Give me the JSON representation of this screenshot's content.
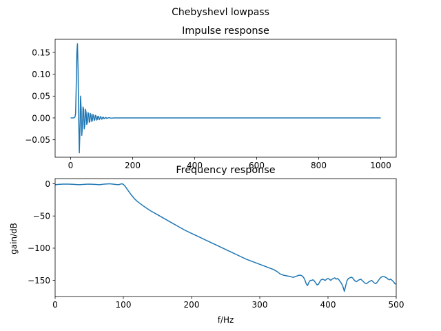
{
  "figure": {
    "suptitle": "Chebyshevl lowpass"
  },
  "chart_data": [
    {
      "type": "line",
      "title": "Impulse response",
      "xlabel": "",
      "ylabel": "",
      "xlim": [
        -50,
        1050
      ],
      "ylim": [
        -0.09,
        0.18
      ],
      "xticks": [
        0,
        200,
        400,
        600,
        800,
        1000
      ],
      "xtick_labels": [
        "0",
        "200",
        "400",
        "600",
        "800",
        "1000"
      ],
      "yticks": [
        0.15,
        0.1,
        0.05,
        0.0,
        -0.05
      ],
      "ytick_labels": [
        "0.15",
        "0.10",
        "0.05",
        "0.00",
        "−0.05"
      ],
      "grid": false,
      "color": "#1f77b4",
      "series": [
        {
          "x": [
            0,
            10,
            14,
            16,
            18,
            20,
            22,
            24,
            26,
            28,
            30,
            32,
            34,
            36,
            38,
            40,
            42,
            44,
            46,
            48,
            50,
            52,
            54,
            56,
            58,
            60,
            62,
            64,
            66,
            68,
            70,
            72,
            74,
            76,
            78,
            80,
            82,
            84,
            86,
            88,
            90,
            92,
            94,
            96,
            98,
            100,
            102,
            104,
            106,
            108,
            110,
            112,
            114,
            116,
            118,
            120,
            125,
            130,
            140,
            160,
            200,
            1000
          ],
          "y": [
            0.0,
            0.0,
            0.002,
            0.01,
            0.07,
            0.15,
            0.17,
            0.11,
            0.0,
            -0.08,
            -0.03,
            0.05,
            0.02,
            -0.04,
            -0.02,
            0.025,
            0.02,
            -0.025,
            -0.015,
            0.02,
            0.012,
            -0.015,
            -0.01,
            0.012,
            0.01,
            -0.01,
            -0.008,
            0.01,
            0.007,
            -0.008,
            -0.006,
            0.008,
            0.005,
            -0.006,
            -0.004,
            0.006,
            0.004,
            -0.005,
            -0.003,
            0.004,
            0.003,
            -0.004,
            -0.002,
            0.003,
            0.002,
            -0.003,
            -0.002,
            0.002,
            0.001,
            -0.002,
            -0.001,
            0.001,
            0.001,
            -0.001,
            -0.001,
            0.0,
            0.0005,
            -0.0005,
            0.0,
            0.0,
            0.0,
            0.0
          ]
        }
      ]
    },
    {
      "type": "line",
      "title": "Frequency response",
      "xlabel": "f/Hz",
      "ylabel": "gain/dB",
      "xlim": [
        0,
        500
      ],
      "ylim": [
        -175,
        8
      ],
      "xticks": [
        0,
        100,
        200,
        300,
        400,
        500
      ],
      "xtick_labels": [
        "0",
        "100",
        "200",
        "300",
        "400",
        "500"
      ],
      "yticks": [
        0,
        -50,
        -100,
        -150
      ],
      "ytick_labels": [
        "0",
        "−50",
        "−100",
        "−150"
      ],
      "grid": false,
      "color": "#1f77b4",
      "series": [
        {
          "x": [
            0,
            5,
            12,
            20,
            28,
            35,
            42,
            50,
            58,
            65,
            72,
            80,
            88,
            93,
            96,
            98,
            100,
            102,
            104,
            106,
            108,
            110,
            113,
            116,
            120,
            125,
            130,
            140,
            150,
            160,
            170,
            180,
            190,
            200,
            210,
            220,
            230,
            240,
            250,
            260,
            270,
            280,
            290,
            300,
            305,
            310,
            315,
            320,
            325,
            330,
            335,
            340,
            345,
            348,
            350,
            352,
            355,
            357,
            360,
            362,
            364,
            366,
            368,
            370,
            372,
            374,
            376,
            378,
            380,
            382,
            384,
            386,
            388,
            390,
            392,
            394,
            396,
            398,
            400,
            402,
            404,
            406,
            408,
            410,
            412,
            414,
            416,
            418,
            420,
            422,
            424,
            426,
            428,
            430,
            432,
            434,
            436,
            438,
            440,
            442,
            444,
            446,
            448,
            450,
            452,
            454,
            456,
            458,
            460,
            462,
            464,
            466,
            468,
            470,
            472,
            474,
            476,
            478,
            480,
            482,
            484,
            486,
            488,
            490,
            492,
            494,
            496,
            498,
            500
          ],
          "y": [
            -1.5,
            -1.0,
            -0.5,
            -0.5,
            -1.0,
            -1.5,
            -1.0,
            -0.5,
            -1.0,
            -1.5,
            -0.5,
            0.0,
            -1.0,
            -1.5,
            -0.5,
            0.0,
            -1.0,
            -3.0,
            -6.0,
            -9.0,
            -12.0,
            -15.0,
            -19.0,
            -23.0,
            -27.0,
            -31.0,
            -35.0,
            -42.0,
            -48.0,
            -54.0,
            -60.0,
            -66.0,
            -72.0,
            -77.0,
            -82.0,
            -87.0,
            -92.0,
            -97.0,
            -102.0,
            -107.0,
            -112.0,
            -117.0,
            -121.0,
            -125.0,
            -127.0,
            -129.0,
            -131.0,
            -133.0,
            -136.0,
            -140.0,
            -142.0,
            -143.0,
            -144.0,
            -145.0,
            -145.0,
            -144.0,
            -143.0,
            -142.0,
            -142.0,
            -143.0,
            -145.0,
            -149.0,
            -155.0,
            -158.0,
            -153.0,
            -150.0,
            -150.0,
            -149.0,
            -151.0,
            -154.0,
            -157.0,
            -156.0,
            -152.0,
            -149.0,
            -148.0,
            -149.0,
            -150.0,
            -148.0,
            -147.0,
            -148.0,
            -150.0,
            -148.0,
            -147.0,
            -146.0,
            -148.0,
            -147.0,
            -149.0,
            -152.0,
            -155.0,
            -160.0,
            -167.0,
            -158.0,
            -150.0,
            -147.0,
            -146.0,
            -145.0,
            -146.0,
            -149.0,
            -151.0,
            -152.0,
            -150.0,
            -149.0,
            -148.0,
            -150.0,
            -152.0,
            -154.0,
            -155.0,
            -154.0,
            -152.0,
            -151.0,
            -150.0,
            -152.0,
            -154.0,
            -155.0,
            -153.0,
            -150.0,
            -147.0,
            -145.0,
            -144.0,
            -144.0,
            -145.0,
            -146.0,
            -148.0,
            -149.0,
            -148.0,
            -150.0,
            -152.0,
            -155.0,
            -156.0
          ]
        }
      ]
    }
  ]
}
